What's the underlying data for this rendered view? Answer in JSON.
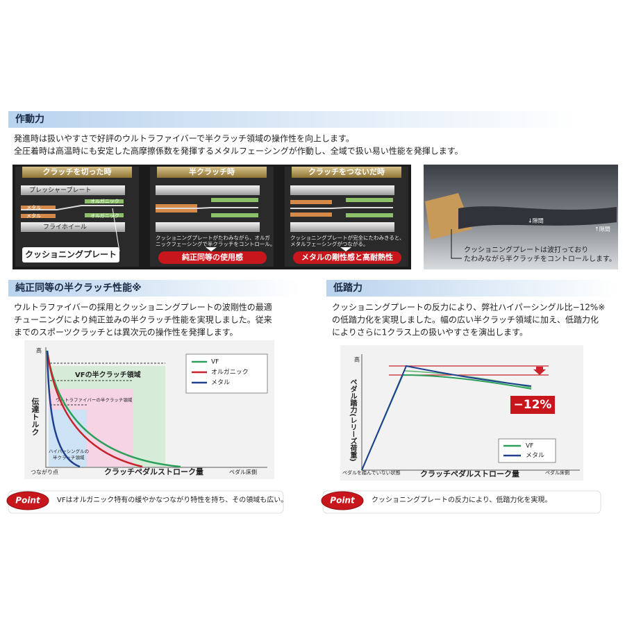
{
  "section1": {
    "title": "作動力",
    "lines": [
      "発進時は扱いやすさで好評のウルトラファイバーで半クラッチ領域の操作性を向上します。",
      "全圧着時は高温時にも安定した高摩擦係数を発揮するメタルフェーシングが作動し、全域で扱い易い性能を発揮します。"
    ],
    "panels": [
      {
        "title": "クラッチを切った時",
        "labels": [
          "プレッシャープレート",
          "オルガニック",
          "メタル",
          "オルガニック",
          "メタル",
          "フライホイール"
        ],
        "callout": "クッショニングプレート"
      },
      {
        "title": "半クラッチ時",
        "caption": [
          "クッショニングプレートがたわみながら、オルガ",
          "ニックフェーシングで半クラッチをコントロール。"
        ],
        "badge": "純正同等の使用感"
      },
      {
        "title": "クラッチをつないだ時",
        "caption": [
          "クッショニングプレートが完全にたわみきると、",
          "メタルフェーシングがつながる。"
        ],
        "badge": "メタルの剛性感と高耐熱性"
      }
    ],
    "photo": {
      "gap_top": "↓隙間",
      "gap_bottom": "↑隙間",
      "caption": [
        "クッショニングプレートは波打っており",
        "たわみながら半クラッチをコントロールします。"
      ]
    }
  },
  "section2": {
    "title": "純正同等の半クラッチ性能※",
    "lines": [
      "ウルトラファイバーの採用とクッショニングプレートの波剛性の最適",
      "チューニングにより純正並みの半クラッチ性能を実現しました。従来",
      "までのスポーツクラッチとは異次元の操作性を発揮します。"
    ],
    "chart": {
      "y_label": "伝達トルク",
      "y_high": "高",
      "x_start": "つながり点",
      "x_label": "クラッチペダルストローク量",
      "x_end": "ペダル床側",
      "regions": [
        "VFの半クラッチ領域",
        "ウルトラファイバーの半クラッチ領域",
        [
          "ハイパーシングルの",
          "半クラッチ領域"
        ]
      ],
      "legend": [
        "VF",
        "オルガニック",
        "メタル"
      ]
    },
    "point": {
      "badge": "Point",
      "text": "VFはオルガニック特有の緩やかなつながり特性を持ち、その領域も広い。"
    }
  },
  "section3": {
    "title": "低踏力",
    "lines": [
      "クッショニングプレートの反力により、弊社ハイパーシングル比−12%※",
      "の低踏力化を実現しました。幅の広い半クラッチ領域に加え、低踏力化",
      "によりさらに1クラス上の扱いやすさを演出します。"
    ],
    "chart": {
      "y_label": "ペダル踏力(レリーズ荷重)",
      "y_high": "高",
      "x_start": "ペダルを踏んでいない状態",
      "x_label": "クラッチペダルストローク量",
      "x_end": "ペダル床側",
      "badge": "−12%",
      "legend": [
        "VF",
        "メタル"
      ]
    },
    "point": {
      "badge": "Point",
      "text": "クッショニングプレートの反力により、低踏力化を実現。"
    }
  }
}
